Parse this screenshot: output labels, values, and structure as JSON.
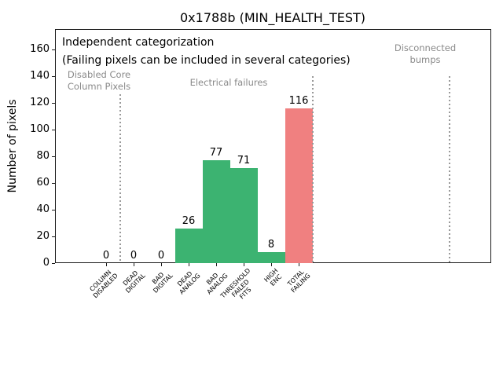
{
  "chart_data": {
    "type": "bar",
    "title": "0x1788b (MIN_HEALTH_TEST)",
    "ylabel": "Number of pixels",
    "xlabel": "",
    "ylim": [
      0,
      175
    ],
    "yticks": [
      0,
      20,
      40,
      60,
      80,
      100,
      120,
      140,
      160
    ],
    "grid": false,
    "legend": "none",
    "categories": [
      "COLUMN\nDISABLED",
      "DEAD\nDIGITAL",
      "BAD\nDIGITAL",
      "DEAD\nANALOG",
      "BAD\nANALOG",
      "THRESHOLD\nFAILED\nFITS",
      "HIGH\nENC",
      "TOTAL\nFAILING"
    ],
    "values": [
      0,
      0,
      0,
      26,
      77,
      71,
      8,
      116
    ],
    "bar_value_labels": [
      "0",
      "0",
      "0",
      "26",
      "77",
      "71",
      "8",
      "116"
    ],
    "bar_colors": [
      "#3cb371",
      "#3cb371",
      "#3cb371",
      "#3cb371",
      "#3cb371",
      "#3cb371",
      "#3cb371",
      "#f08080"
    ],
    "annotations": {
      "note_line1": "Independent categorization",
      "note_line2": "(Failing pixels can be included in several categories)",
      "sections": [
        {
          "label": "Disabled Core\nColumn Pixels"
        },
        {
          "label": "Electrical failures"
        },
        {
          "label": "Disconnected\nbumps"
        }
      ]
    },
    "colors": {
      "bar_green": "#3cb371",
      "bar_total_failing": "#f08080",
      "section_text": "#8a8a8a",
      "divider_line": "#999999"
    }
  }
}
